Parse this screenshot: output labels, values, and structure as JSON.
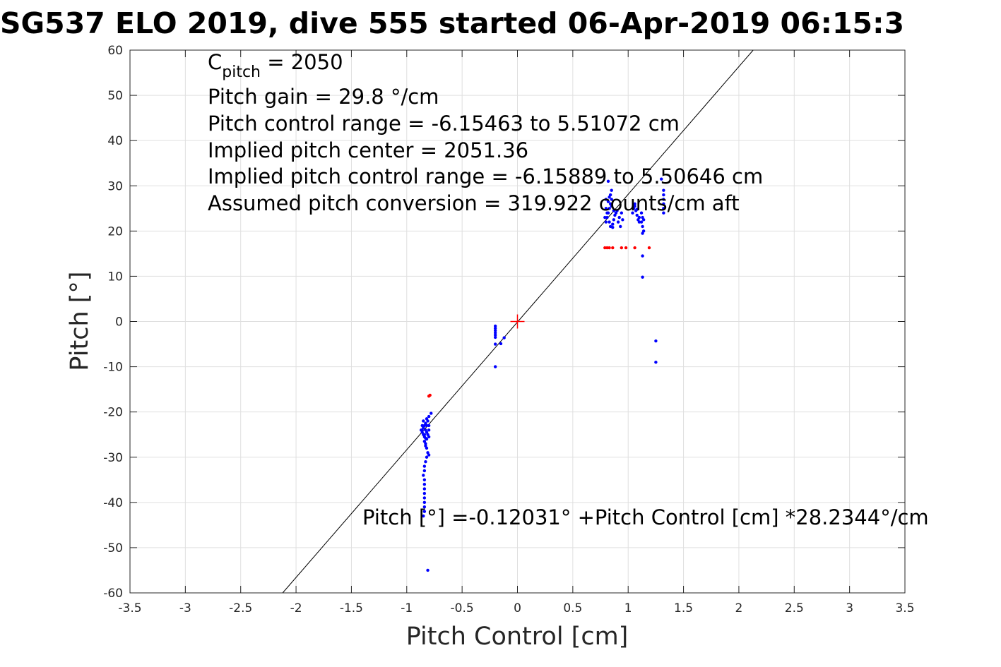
{
  "chart_data": {
    "type": "scatter",
    "title": "SG537 ELO 2019, dive 555 started 06-Apr-2019 06:15:3",
    "xlabel": "Pitch Control [cm]",
    "ylabel": "Pitch [°]",
    "xlim": [
      -3.5,
      3.5
    ],
    "ylim": [
      -60,
      60
    ],
    "xticks": [
      -3.5,
      -3,
      -2.5,
      -2,
      -1.5,
      -1,
      -0.5,
      0,
      0.5,
      1,
      1.5,
      2,
      2.5,
      3,
      3.5
    ],
    "yticks": [
      -60,
      -50,
      -40,
      -30,
      -20,
      -10,
      0,
      10,
      20,
      30,
      40,
      50,
      60
    ],
    "grid": true,
    "annotations": {
      "c_pitch_base": "C",
      "c_pitch_sub": "pitch",
      "c_pitch_rest": " = 2050",
      "pitch_gain": "Pitch gain = 29.8 °/cm",
      "control_range": "Pitch control range = -6.15463 to 5.51072 cm",
      "implied_center": "Implied pitch center = 2051.36",
      "implied_range": "Implied pitch control range = -6.15889 to 5.50646 cm",
      "assumed_conversion": "Assumed pitch conversion = 319.922 counts/cm aft",
      "fit_equation": "Pitch [°] =-0.12031° +Pitch Control [cm] *28.2344°/cm"
    },
    "fit_line": {
      "intercept": -0.12031,
      "slope": 28.2344,
      "color": "#000000"
    },
    "center_marker": {
      "x": 0,
      "y": 0,
      "color": "#ff0000"
    },
    "series": [
      {
        "color": "#0000ff",
        "points": [
          [
            -0.85,
            -22
          ],
          [
            -0.84,
            -23
          ],
          [
            -0.83,
            -24
          ],
          [
            -0.84,
            -25
          ],
          [
            -0.86,
            -24
          ],
          [
            -0.82,
            -23
          ],
          [
            -0.81,
            -22
          ],
          [
            -0.8,
            -21
          ],
          [
            -0.82,
            -21.5
          ],
          [
            -0.83,
            -22.5
          ],
          [
            -0.85,
            -23.5
          ],
          [
            -0.87,
            -24
          ],
          [
            -0.86,
            -24.5
          ],
          [
            -0.84,
            -25.5
          ],
          [
            -0.82,
            -24.5
          ],
          [
            -0.81,
            -25
          ],
          [
            -0.8,
            -24
          ],
          [
            -0.82,
            -26
          ],
          [
            -0.83,
            -27
          ],
          [
            -0.82,
            -28
          ],
          [
            -0.81,
            -29
          ],
          [
            -0.8,
            -29.5
          ],
          [
            -0.84,
            -26.5
          ],
          [
            -0.83,
            -27.5
          ],
          [
            -0.82,
            -30
          ],
          [
            -0.83,
            -31
          ],
          [
            -0.84,
            -32
          ],
          [
            -0.84,
            -33
          ],
          [
            -0.85,
            -34
          ],
          [
            -0.84,
            -35
          ],
          [
            -0.84,
            -36
          ],
          [
            -0.84,
            -37
          ],
          [
            -0.84,
            -38
          ],
          [
            -0.84,
            -39
          ],
          [
            -0.84,
            -40
          ],
          [
            -0.84,
            -41
          ],
          [
            -0.84,
            -42
          ],
          [
            -0.85,
            -43
          ],
          [
            -0.81,
            -55
          ],
          [
            -0.78,
            -20.3
          ],
          [
            -0.8,
            -25.5
          ],
          [
            -0.8,
            -23
          ],
          [
            -0.86,
            -23
          ],
          [
            -0.85,
            -25
          ],
          [
            -0.83,
            -25.8
          ],
          [
            -0.2,
            -1
          ],
          [
            -0.2,
            -1.5
          ],
          [
            -0.2,
            -2
          ],
          [
            -0.2,
            -2.5
          ],
          [
            -0.2,
            -3
          ],
          [
            -0.2,
            -3.5
          ],
          [
            -0.2,
            -5
          ],
          [
            -0.2,
            -10
          ],
          [
            -0.15,
            -4.9
          ],
          [
            -0.12,
            -3.6
          ],
          [
            0.8,
            22
          ],
          [
            0.81,
            23
          ],
          [
            0.82,
            24
          ],
          [
            0.83,
            25
          ],
          [
            0.84,
            26
          ],
          [
            0.85,
            27
          ],
          [
            0.84,
            28
          ],
          [
            0.85,
            29
          ],
          [
            0.82,
            31
          ],
          [
            0.8,
            25
          ],
          [
            0.81,
            24
          ],
          [
            0.83,
            22
          ],
          [
            0.86,
            21.5
          ],
          [
            0.87,
            22.5
          ],
          [
            0.88,
            23.5
          ],
          [
            0.89,
            24
          ],
          [
            0.9,
            24.5
          ],
          [
            0.91,
            22
          ],
          [
            0.92,
            23
          ],
          [
            0.93,
            21
          ],
          [
            0.94,
            24
          ],
          [
            0.95,
            22.5
          ],
          [
            0.84,
            21
          ],
          [
            0.86,
            20.8
          ],
          [
            0.82,
            26.5
          ],
          [
            0.83,
            27.5
          ],
          [
            0.85,
            25.5
          ],
          [
            0.87,
            24.5
          ],
          [
            0.79,
            23
          ],
          [
            0.8,
            27
          ],
          [
            1.04,
            24
          ],
          [
            1.05,
            25
          ],
          [
            1.06,
            26
          ],
          [
            1.07,
            24.5
          ],
          [
            1.08,
            23.5
          ],
          [
            1.09,
            22.5
          ],
          [
            1.1,
            22
          ],
          [
            1.06,
            25.5
          ],
          [
            1.08,
            24.8
          ],
          [
            1.1,
            23
          ],
          [
            1.12,
            22
          ],
          [
            1.13,
            21
          ],
          [
            1.14,
            20
          ],
          [
            1.13,
            23
          ],
          [
            1.12,
            24
          ],
          [
            1.14,
            22.5
          ],
          [
            1.13,
            19.5
          ],
          [
            1.13,
            14.5
          ],
          [
            1.13,
            9.8
          ],
          [
            1.25,
            -4.3
          ],
          [
            1.25,
            -9
          ],
          [
            1.32,
            24
          ],
          [
            1.32,
            25
          ],
          [
            1.32,
            26
          ],
          [
            1.32,
            27
          ],
          [
            1.32,
            28
          ],
          [
            1.32,
            29
          ],
          [
            1.3,
            31.5
          ]
        ]
      },
      {
        "color": "#ff0000",
        "points": [
          [
            -0.79,
            -16.3
          ],
          [
            -0.8,
            -16.5
          ],
          [
            0.79,
            16.3
          ],
          [
            0.81,
            16.3
          ],
          [
            0.83,
            16.3
          ],
          [
            0.86,
            16.3
          ],
          [
            0.94,
            16.3
          ],
          [
            0.98,
            16.3
          ],
          [
            1.06,
            16.3
          ],
          [
            1.19,
            16.3
          ]
        ]
      }
    ]
  }
}
